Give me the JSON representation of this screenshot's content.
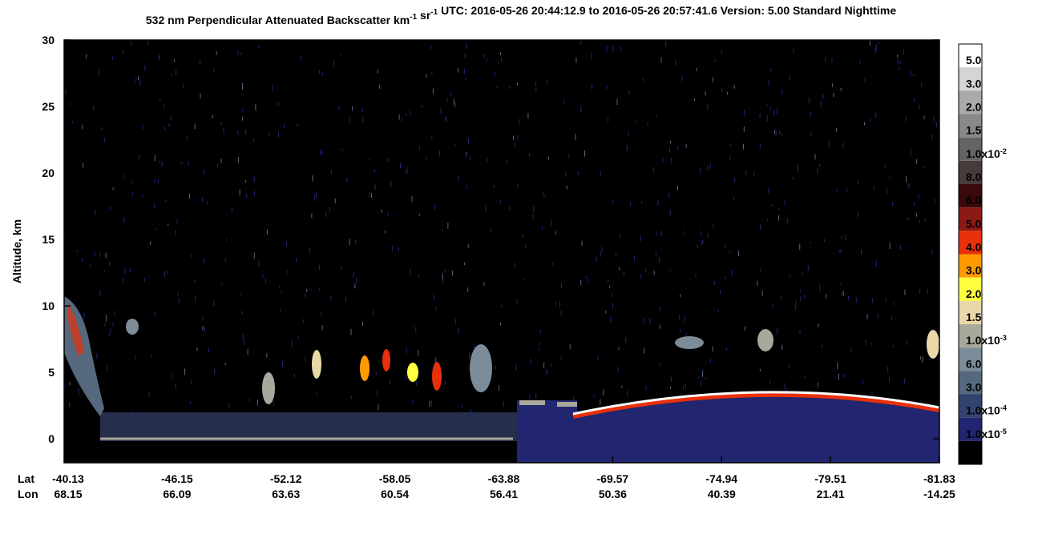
{
  "chart_data": {
    "type": "heatmap",
    "title": [
      {
        "text": "532 nm Perpendicular Attenuated Backscatter km",
        "superscript": "-1"
      },
      {
        "text": " sr",
        "superscript": "-1"
      },
      {
        "text": "  UTC: 2016-05-26 20:44:12.9 to 2016-05-26 20:57:41.6  Version: 5.00 Standard Nighttime"
      }
    ],
    "ylabel": "Altitude, km",
    "ylim": [
      -1.8,
      30
    ],
    "yticks": [
      0,
      5,
      10,
      15,
      20,
      25,
      30
    ],
    "x_row_labels": [
      "Lat",
      "Lon"
    ],
    "lat": [
      -40.13,
      -46.15,
      -52.12,
      -58.05,
      -63.88,
      -69.57,
      -74.94,
      -79.51,
      -81.83
    ],
    "lon": [
      68.15,
      66.09,
      63.63,
      60.54,
      56.41,
      50.36,
      40.39,
      21.41,
      -14.25
    ],
    "colorbar": [
      {
        "color": "#ffffff",
        "label": {
          "text": "5.0"
        }
      },
      {
        "color": "#d4d4d4",
        "label": {
          "text": "3.0"
        }
      },
      {
        "color": "#aaaaaa",
        "label": {
          "text": "2.0"
        }
      },
      {
        "color": "#888888",
        "label": {
          "text": "1.5"
        }
      },
      {
        "color": "#646464",
        "label": {
          "text": "1.0x10",
          "superscript": "-2"
        }
      },
      {
        "color": "#463c3a",
        "label": {
          "text": "8.0"
        }
      },
      {
        "color": "#3a0a0a",
        "label": {
          "text": "6.0"
        }
      },
      {
        "color": "#8c1a14",
        "label": {
          "text": "5.0"
        }
      },
      {
        "color": "#e8300a",
        "label": {
          "text": "4.0"
        }
      },
      {
        "color": "#ff9a00",
        "label": {
          "text": "3.0"
        }
      },
      {
        "color": "#ffff40",
        "label": {
          "text": "2.0"
        }
      },
      {
        "color": "#e8d8a8",
        "label": {
          "text": "1.5"
        }
      },
      {
        "color": "#a8a89c",
        "label": {
          "text": "1.0x10",
          "superscript": "-3"
        }
      },
      {
        "color": "#7c8c98",
        "label": {
          "text": "6.0"
        }
      },
      {
        "color": "#56687e",
        "label": {
          "text": "3.0"
        }
      },
      {
        "color": "#34426e",
        "label": {
          "text": "1.0x10",
          "superscript": "-4"
        }
      },
      {
        "color": "#222670",
        "label": {
          "text": "1.0x10",
          "superscript": "-5"
        }
      },
      {
        "color": "#000000",
        "label": null
      }
    ]
  }
}
